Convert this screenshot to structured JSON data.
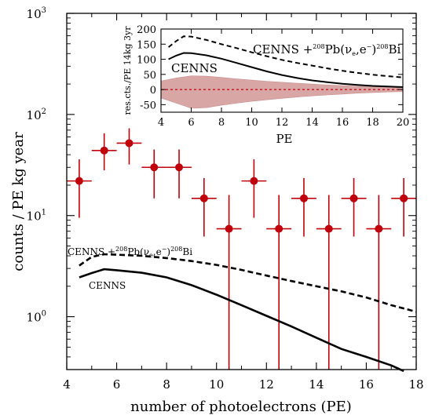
{
  "chart_data": [
    {
      "type": "scatter",
      "xlabel": "number of photoelectrons (PE)",
      "ylabel": "counts / PE kg year",
      "xlim": [
        4,
        18
      ],
      "ylim": [
        0.3,
        1000
      ],
      "yscale": "log",
      "x_ticks": [
        "4",
        "6",
        "8",
        "10",
        "12",
        "14",
        "16",
        "18"
      ],
      "y_ticks": [
        {
          "base": "10",
          "exp": "0"
        },
        {
          "base": "10",
          "exp": "1"
        },
        {
          "base": "10",
          "exp": "2"
        },
        {
          "base": "10",
          "exp": "3"
        }
      ],
      "colors": {
        "data": "#c0000a",
        "curve": "#000000"
      },
      "series": [
        {
          "label": "",
          "style": "points-with-errorbars",
          "x": [
            4.5,
            5.5,
            6.5,
            7.5,
            8.5,
            9.5,
            10.5,
            11.5,
            12.5,
            13.5,
            14.5,
            15.5,
            16.5,
            17.5
          ],
          "y": [
            22,
            44,
            52,
            30,
            30,
            14.8,
            7.4,
            22,
            7.4,
            14.8,
            7.4,
            14.8,
            7.4,
            14.8
          ],
          "y_low": [
            9.5,
            28,
            32,
            14.8,
            14.8,
            6.2,
            0.1,
            9.5,
            0.1,
            6.2,
            0.1,
            6.2,
            0.1,
            6.2
          ],
          "y_high": [
            36,
            65,
            73,
            45,
            45,
            23.5,
            16,
            36,
            16,
            23.5,
            16,
            23.5,
            16,
            23.5
          ],
          "x_halfwidth": 0.5
        },
        {
          "name": "CENNS",
          "style": "solid",
          "x": [
            4.5,
            5.0,
            5.5,
            6.0,
            7.0,
            8.0,
            9.0,
            10.0,
            11.0,
            12.0,
            13.0,
            14.0,
            15.0,
            16.0,
            17.0,
            17.5
          ],
          "y": [
            2.45,
            2.7,
            2.95,
            2.88,
            2.72,
            2.45,
            2.05,
            1.65,
            1.3,
            1.02,
            0.8,
            0.62,
            0.48,
            0.4,
            0.33,
            0.29
          ]
        },
        {
          "name": "CENNS +208Pb(νe,e−)208Bi",
          "style": "dashed",
          "x": [
            4.5,
            5.0,
            5.5,
            6.0,
            7.0,
            8.0,
            9.0,
            10.0,
            11.0,
            12.0,
            13.0,
            14.0,
            15.0,
            16.0,
            17.0,
            18.0
          ],
          "y": [
            3.2,
            3.9,
            4.15,
            4.1,
            4.0,
            3.8,
            3.55,
            3.25,
            2.9,
            2.55,
            2.25,
            2.0,
            1.78,
            1.55,
            1.3,
            1.12
          ]
        }
      ],
      "annotations": [
        {
          "text": "CENNS",
          "near_x": 6.0
        },
        {
          "text_parts": [
            "CENNS +",
            "208",
            "Pb(ν",
            "e",
            ",e",
            "−",
            ")",
            "208",
            "Bi"
          ]
        }
      ]
    },
    {
      "type": "line",
      "inset": true,
      "xlabel": "PE",
      "ylabel": "res.cts./PE 14kg 3yr",
      "xlim": [
        4,
        20
      ],
      "ylim": [
        -75,
        200
      ],
      "x_ticks": [
        "4",
        "6",
        "8",
        "10",
        "12",
        "14",
        "16",
        "18",
        "20"
      ],
      "y_ticks": [
        "-50",
        "0",
        "50",
        "100",
        "150",
        "200"
      ],
      "colors": {
        "band": "#d9a6a6",
        "zero_line": "#c0000a"
      },
      "series": [
        {
          "name": "CENNS",
          "style": "solid",
          "x": [
            4.5,
            5.0,
            5.5,
            6.0,
            7,
            8,
            9,
            10,
            11,
            12,
            13,
            14,
            15,
            16,
            17,
            18,
            19,
            20
          ],
          "y": [
            100,
            112,
            121,
            120,
            113,
            102,
            88,
            74,
            60,
            48,
            38,
            30,
            24,
            19,
            15,
            12,
            10,
            8
          ]
        },
        {
          "name": "CENNS +208Pb(νe,e−)208Bi",
          "style": "dashed",
          "x": [
            4.5,
            5.0,
            5.5,
            6.0,
            7,
            8,
            9,
            10,
            11,
            12,
            13,
            14,
            15,
            16,
            17,
            18,
            19,
            20
          ],
          "y": [
            140,
            160,
            176,
            175,
            164,
            150,
            137,
            123,
            110,
            98,
            88,
            79,
            70,
            62,
            55,
            49,
            44,
            40
          ]
        },
        {
          "name": "",
          "style": "band",
          "x": [
            4,
            5,
            6,
            7,
            8,
            9,
            10,
            11,
            12,
            13,
            14,
            15,
            16,
            17,
            18,
            19,
            20
          ],
          "y_upper": [
            28,
            38,
            45,
            44,
            40,
            35,
            31,
            27,
            24,
            21,
            18,
            15,
            13,
            11,
            9,
            8,
            7
          ],
          "y_lower": [
            -28,
            -45,
            -62,
            -60,
            -52,
            -45,
            -39,
            -34,
            -29,
            -25,
            -21,
            -18,
            -15,
            -12,
            -10,
            -8,
            -7
          ]
        }
      ],
      "annotations": [
        {
          "text": "CENNS"
        },
        {
          "text_parts": [
            "CENNS +",
            "208",
            "Pb(ν",
            "e",
            ",e",
            "−",
            ")",
            "208",
            "Bi"
          ]
        }
      ]
    }
  ]
}
